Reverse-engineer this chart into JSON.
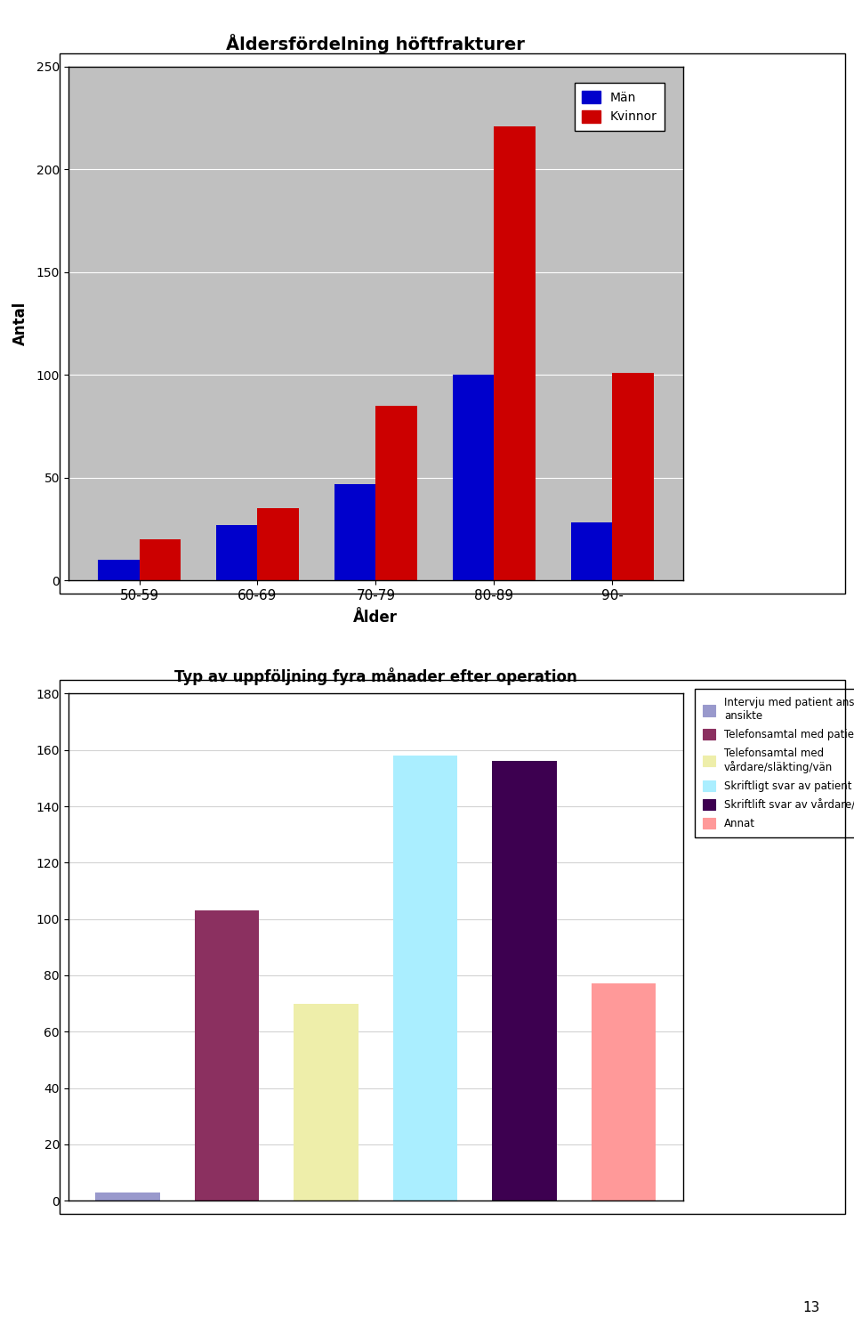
{
  "chart1": {
    "title": "Åldersfördelning höftfrakturer",
    "categories": [
      "50-59",
      "60-69",
      "70-79",
      "80-89",
      "90-"
    ],
    "man_values": [
      10,
      27,
      47,
      100,
      28
    ],
    "kvinnor_values": [
      20,
      35,
      85,
      221,
      101
    ],
    "ylabel": "Antal",
    "xlabel": "Ålder",
    "ylim": [
      0,
      250
    ],
    "yticks": [
      0,
      50,
      100,
      150,
      200,
      250
    ],
    "man_color": "#0000CC",
    "kvinnor_color": "#CC0000",
    "bg_color": "#C0C0C0",
    "legend_man": "Män",
    "legend_kvinnor": "Kvinnor"
  },
  "chart2": {
    "title": "Typ av uppföljning fyra månader efter operation",
    "bar_values": [
      3,
      103,
      70,
      158,
      156,
      77
    ],
    "bar_colors": [
      "#9999CC",
      "#8B3060",
      "#EEEEAA",
      "#AAEEFF",
      "#3D0050",
      "#FF9999"
    ],
    "ylim": [
      0,
      180
    ],
    "yticks": [
      0,
      20,
      40,
      60,
      80,
      100,
      120,
      140,
      160,
      180
    ],
    "legend_labels": [
      "Intervju med patient ansikte mot\nansikte",
      "Telefonsamtal med patient",
      "Telefonsamtal med\nvårdare/släkting/vän",
      "Skriftligt svar av patient",
      "Skriftlift svar av vårdare/släkting/vän",
      "Annat"
    ]
  },
  "page_number": "13"
}
